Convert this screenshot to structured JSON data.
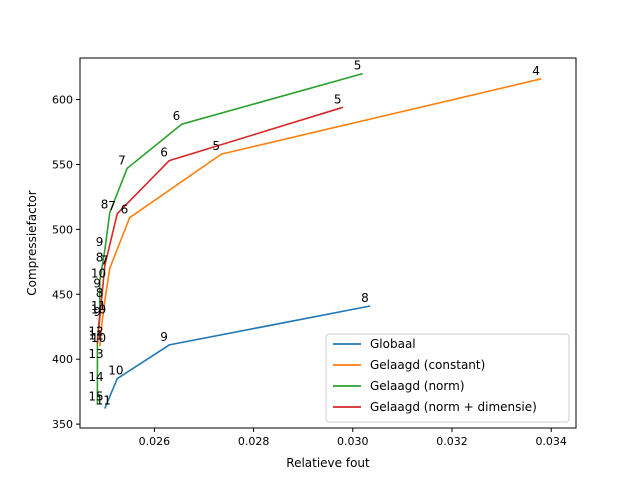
{
  "chart_data": {
    "type": "line",
    "title": "",
    "xlabel": "Relatieve fout",
    "ylabel": "Compressiefactor",
    "xlim": [
      0.0245,
      0.0345
    ],
    "ylim": [
      347,
      632
    ],
    "xticks": [
      0.026,
      0.028,
      0.03,
      0.032,
      0.034
    ],
    "xtick_labels": [
      "0.026",
      "0.028",
      "0.030",
      "0.032",
      "0.034"
    ],
    "yticks": [
      350,
      400,
      450,
      500,
      550,
      600
    ],
    "ytick_labels": [
      "350",
      "400",
      "450",
      "500",
      "550",
      "600"
    ],
    "grid": false,
    "legend": "lower-right",
    "series": [
      {
        "name": "Globaal",
        "color": "#1f77b4",
        "points": [
          {
            "x": 0.03035,
            "y": 441,
            "label": "8"
          },
          {
            "x": 0.0263,
            "y": 411,
            "label": "9"
          },
          {
            "x": 0.02525,
            "y": 385,
            "label": "10"
          },
          {
            "x": 0.025,
            "y": 362,
            "label": "11"
          }
        ]
      },
      {
        "name": "Gelaagd (constant)",
        "color": "#ff7f0e",
        "points": [
          {
            "x": 0.0338,
            "y": 616,
            "label": "4"
          },
          {
            "x": 0.02735,
            "y": 558,
            "label": "5"
          },
          {
            "x": 0.0255,
            "y": 509,
            "label": "6"
          },
          {
            "x": 0.0251,
            "y": 470,
            "label": "7"
          },
          {
            "x": 0.025,
            "y": 445,
            "label": "8"
          },
          {
            "x": 0.02495,
            "y": 430,
            "label": "9"
          },
          {
            "x": 0.0249,
            "y": 410,
            "label": "10"
          }
        ]
      },
      {
        "name": "Gelaagd (norm)",
        "color": "#2ca02c",
        "points": [
          {
            "x": 0.0302,
            "y": 620,
            "label": "5"
          },
          {
            "x": 0.02655,
            "y": 581,
            "label": "6"
          },
          {
            "x": 0.02545,
            "y": 547,
            "label": "7"
          },
          {
            "x": 0.0251,
            "y": 513,
            "label": "8"
          },
          {
            "x": 0.025,
            "y": 484,
            "label": "9"
          },
          {
            "x": 0.0249,
            "y": 460,
            "label": "10"
          },
          {
            "x": 0.0249,
            "y": 435,
            "label": "11"
          },
          {
            "x": 0.02485,
            "y": 415,
            "label": "12"
          },
          {
            "x": 0.02485,
            "y": 398,
            "label": "13"
          },
          {
            "x": 0.02485,
            "y": 380,
            "label": "14"
          },
          {
            "x": 0.02485,
            "y": 365,
            "label": "15"
          }
        ]
      },
      {
        "name": "Gelaagd (norm + dimensie)",
        "color": "#d62728",
        "points": [
          {
            "x": 0.0298,
            "y": 594,
            "label": "5"
          },
          {
            "x": 0.0263,
            "y": 553,
            "label": "6"
          },
          {
            "x": 0.02525,
            "y": 512,
            "label": "7"
          },
          {
            "x": 0.025,
            "y": 472,
            "label": "8"
          },
          {
            "x": 0.02495,
            "y": 452,
            "label": "9"
          },
          {
            "x": 0.0249,
            "y": 432,
            "label": "10"
          },
          {
            "x": 0.02485,
            "y": 412,
            "label": "11"
          }
        ]
      }
    ]
  }
}
